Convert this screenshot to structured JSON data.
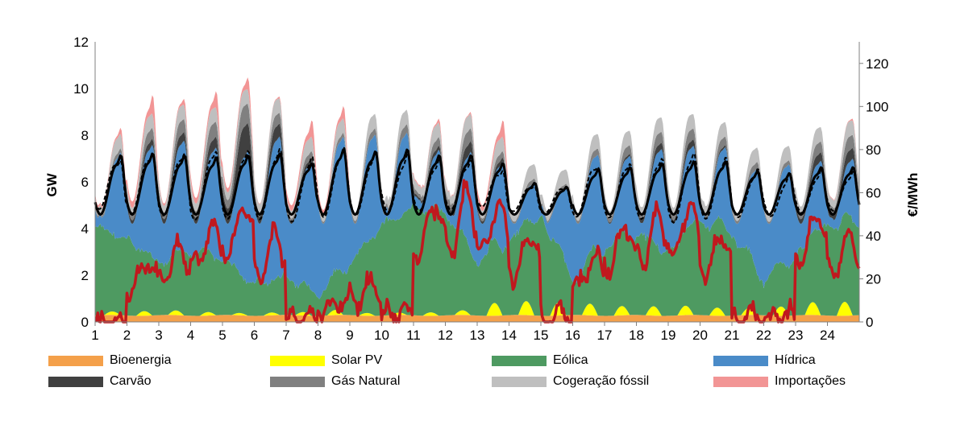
{
  "chart_data": {
    "type": "area",
    "stacked": true,
    "x": [
      1,
      2,
      3,
      4,
      5,
      6,
      7,
      8,
      9,
      10,
      11,
      12,
      13,
      14,
      15,
      16,
      17,
      18,
      19,
      20,
      21,
      22,
      23,
      24
    ],
    "xlabel": "",
    "ylabel": "GW",
    "y2label": "€/MWh",
    "ylim": [
      0,
      12
    ],
    "y2lim": [
      0,
      130
    ],
    "yticks": [
      0,
      2,
      4,
      6,
      8,
      10,
      12
    ],
    "y2ticks": [
      0,
      20,
      40,
      60,
      80,
      100,
      120
    ],
    "grid": false,
    "legend_position": "bottom",
    "series": [
      {
        "name": "Bioenergia",
        "color": "#F4A04A",
        "axis": "left"
      },
      {
        "name": "Solar PV",
        "color": "#FFFF00",
        "axis": "left"
      },
      {
        "name": "Eólica",
        "color": "#4E9A61",
        "axis": "left"
      },
      {
        "name": "Hídrica",
        "color": "#4A8BC8",
        "axis": "left"
      },
      {
        "name": "Carvão",
        "color": "#404040",
        "axis": "left"
      },
      {
        "name": "Gás Natural",
        "color": "#808080",
        "axis": "left"
      },
      {
        "name": "Cogeração fóssil",
        "color": "#BFBFBF",
        "axis": "left"
      },
      {
        "name": "Importações",
        "color": "#F29595",
        "axis": "left"
      }
    ],
    "lines": [
      {
        "color": "#000000",
        "style": "solid",
        "axis": "left"
      },
      {
        "color": "#000000",
        "style": "dashed",
        "axis": "left"
      },
      {
        "color": "#C0181E",
        "style": "solid",
        "axis": "right"
      }
    ],
    "profiles": {
      "wind_daily": [
        3.8,
        3.2,
        2.2,
        2.8,
        2.4,
        1.3,
        1.6,
        0.9,
        2.2,
        3.8,
        4.6,
        4.4,
        2.3,
        3.1,
        4.1,
        1.4,
        2.9,
        3.4,
        2.6,
        4.0,
        3.5,
        1.4,
        2.4,
        3.8
      ],
      "solar_peak": [
        0.15,
        0.2,
        0.2,
        0.15,
        0.1,
        0.12,
        0.15,
        0.22,
        0.12,
        0.1,
        0.15,
        0.2,
        0.55,
        0.6,
        0.55,
        0.5,
        0.4,
        0.4,
        0.4,
        0.35,
        0.3,
        0.4,
        0.55,
        0.6
      ],
      "hydro_daily": [
        1.8,
        2.6,
        3.5,
        2.8,
        2.0,
        3.8,
        1.6,
        3.2,
        3.8,
        3.8,
        2.2,
        1.9,
        1.6,
        1.4,
        1.2,
        3.4,
        3.0,
        3.4,
        3.6,
        3.4,
        1.8,
        2.6,
        2.3,
        2.6
      ],
      "coal_daily": [
        0,
        0.3,
        0.4,
        0.5,
        1.3,
        0.6,
        0.2,
        0,
        0,
        0,
        0.2,
        0.5,
        0.2,
        0,
        0,
        0,
        0.1,
        0.3,
        0.3,
        0.1,
        0,
        0,
        0.4,
        0.5
      ],
      "gas_daily": [
        0.2,
        0.5,
        0.6,
        0.7,
        0.9,
        0.5,
        0.3,
        0.2,
        0.3,
        0.4,
        0.4,
        0.6,
        0.3,
        0.2,
        0.2,
        0.3,
        0.4,
        0.5,
        0.5,
        0.4,
        0.3,
        0.2,
        0.5,
        0.6
      ],
      "cogen": 0.55,
      "imports_daily": [
        0.3,
        0.9,
        0.3,
        0.8,
        0.6,
        0.1,
        0.8,
        0.6,
        0,
        0,
        0.2,
        0.1,
        0.8,
        0,
        0,
        0,
        0,
        0,
        0,
        0,
        0,
        0,
        0,
        0.1
      ],
      "consumption_peak": [
        7.6,
        7.7,
        7.6,
        7.5,
        7.6,
        7.7,
        7.2,
        7.9,
        7.8,
        7.9,
        7.6,
        7.6,
        7.2,
        6.2,
        6.0,
        6.9,
        7.0,
        7.2,
        7.3,
        7.3,
        6.8,
        6.7,
        7.0,
        7.0
      ],
      "price_daily": [
        2,
        28,
        35,
        45,
        55,
        40,
        5,
        10,
        18,
        8,
        55,
        60,
        55,
        40,
        5,
        30,
        45,
        50,
        55,
        40,
        5,
        5,
        50,
        40
      ]
    }
  },
  "legend": {
    "items": [
      {
        "label": "Bioenergia",
        "color": "#F4A04A"
      },
      {
        "label": "Solar PV",
        "color": "#FFFF00"
      },
      {
        "label": "Eólica",
        "color": "#4E9A61"
      },
      {
        "label": "Hídrica",
        "color": "#4A8BC8"
      },
      {
        "label": "Carvão",
        "color": "#404040"
      },
      {
        "label": "Gás Natural",
        "color": "#808080"
      },
      {
        "label": "Cogeração fóssil",
        "color": "#BFBFBF"
      },
      {
        "label": "Importações",
        "color": "#F29595"
      }
    ]
  }
}
